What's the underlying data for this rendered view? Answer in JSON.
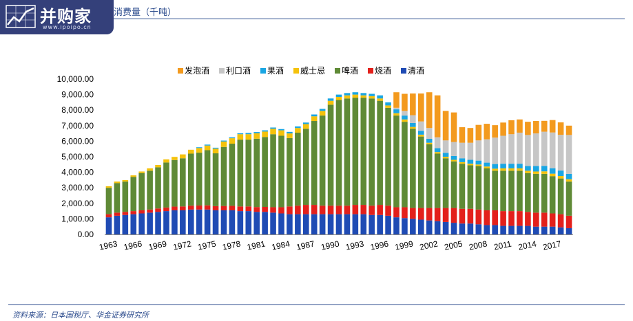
{
  "header": {
    "logo_text": "并购家",
    "logo_url": "www.ipoipo.cn",
    "title": "消费量（千吨）"
  },
  "footer": {
    "source": "资料来源：日本国税厅、华金证券研究所"
  },
  "colors": {
    "清酒": "#1f4bb4",
    "烧酒": "#e3201b",
    "啤酒": "#5f8a36",
    "威士忌": "#f5c20b",
    "果酒": "#1aa6e3",
    "利口酒": "#c6c6c6",
    "发泡酒": "#f39a1e",
    "brand": "#34407a",
    "text_blue": "#2a4a8c"
  },
  "chart_data": {
    "type": "bar",
    "stacked": true,
    "title": "",
    "xlabel": "",
    "ylabel": "",
    "ylim": [
      0,
      10000
    ],
    "yticks": [
      "0.00",
      "1,000.00",
      "2,000.00",
      "3,000.00",
      "4,000.00",
      "5,000.00",
      "6,000.00",
      "7,000.00",
      "8,000.00",
      "9,000.00",
      "10,000.00"
    ],
    "grid": false,
    "legend_position": "top",
    "legend_order": [
      "发泡酒",
      "利口酒",
      "果酒",
      "威士忌",
      "啤酒",
      "烧酒",
      "清酒"
    ],
    "categories": [
      "1963",
      "1964",
      "1965",
      "1966",
      "1967",
      "1968",
      "1969",
      "1970",
      "1971",
      "1972",
      "1973",
      "1974",
      "1975",
      "1976",
      "1977",
      "1978",
      "1979",
      "1980",
      "1981",
      "1982",
      "1983",
      "1984",
      "1985",
      "1986",
      "1987",
      "1988",
      "1989",
      "1990",
      "1991",
      "1992",
      "1993",
      "1994",
      "1995",
      "1996",
      "1997",
      "1998",
      "1999",
      "2000",
      "2001",
      "2002",
      "2003",
      "2004",
      "2005",
      "2006",
      "2007",
      "2008",
      "2009",
      "2010",
      "2011",
      "2012",
      "2013",
      "2014",
      "2015",
      "2016",
      "2017",
      "2018",
      "2019"
    ],
    "xtick_labels": [
      "1963",
      "1966",
      "1969",
      "1972",
      "1975",
      "1978",
      "1981",
      "1984",
      "1987",
      "1990",
      "1993",
      "1996",
      "1999",
      "2002",
      "2005",
      "2008",
      "2011",
      "2014",
      "2017"
    ],
    "series": [
      {
        "name": "清酒",
        "values": [
          1100,
          1200,
          1250,
          1300,
          1350,
          1400,
          1450,
          1500,
          1550,
          1550,
          1600,
          1600,
          1600,
          1550,
          1550,
          1550,
          1500,
          1500,
          1450,
          1450,
          1400,
          1350,
          1300,
          1300,
          1300,
          1300,
          1300,
          1300,
          1300,
          1300,
          1300,
          1300,
          1250,
          1250,
          1200,
          1100,
          1050,
          1000,
          950,
          900,
          850,
          800,
          750,
          700,
          700,
          650,
          600,
          600,
          550,
          550,
          550,
          550,
          500,
          500,
          500,
          450,
          400
        ]
      },
      {
        "name": "烧酒",
        "values": [
          200,
          200,
          200,
          200,
          200,
          200,
          220,
          230,
          240,
          250,
          250,
          260,
          270,
          270,
          280,
          290,
          300,
          300,
          310,
          320,
          350,
          400,
          500,
          550,
          600,
          600,
          550,
          550,
          550,
          550,
          600,
          600,
          600,
          650,
          650,
          650,
          700,
          700,
          750,
          800,
          850,
          900,
          950,
          950,
          950,
          950,
          950,
          950,
          950,
          950,
          950,
          900,
          900,
          900,
          850,
          850,
          800
        ]
      },
      {
        "name": "啤酒",
        "values": [
          1700,
          1900,
          1950,
          2200,
          2400,
          2500,
          2650,
          2900,
          3000,
          3100,
          3350,
          3400,
          3550,
          3400,
          3800,
          4000,
          4300,
          4300,
          4400,
          4500,
          4700,
          4600,
          4400,
          4700,
          4900,
          5400,
          5800,
          6500,
          6800,
          6900,
          6900,
          6900,
          6900,
          6700,
          6300,
          5900,
          5500,
          5100,
          4600,
          4100,
          3500,
          3200,
          3000,
          2900,
          2800,
          2800,
          2700,
          2550,
          2600,
          2600,
          2600,
          2500,
          2500,
          2500,
          2400,
          2300,
          2200
        ]
      },
      {
        "name": "威士忌",
        "values": [
          100,
          100,
          100,
          100,
          100,
          150,
          150,
          200,
          200,
          250,
          250,
          300,
          300,
          300,
          350,
          350,
          350,
          350,
          350,
          350,
          350,
          350,
          300,
          300,
          300,
          300,
          300,
          250,
          200,
          200,
          200,
          150,
          150,
          150,
          150,
          150,
          150,
          120,
          120,
          100,
          100,
          100,
          100,
          100,
          100,
          100,
          120,
          130,
          150,
          150,
          150,
          150,
          150,
          160,
          160,
          160,
          150
        ]
      },
      {
        "name": "果酒",
        "values": [
          0,
          0,
          0,
          0,
          0,
          0,
          0,
          0,
          0,
          0,
          0,
          50,
          60,
          60,
          60,
          60,
          60,
          80,
          80,
          80,
          80,
          80,
          100,
          100,
          100,
          120,
          130,
          150,
          150,
          150,
          150,
          150,
          150,
          200,
          200,
          250,
          250,
          250,
          250,
          250,
          250,
          250,
          250,
          250,
          250,
          250,
          250,
          300,
          300,
          300,
          300,
          300,
          350,
          350,
          350,
          350,
          350
        ]
      },
      {
        "name": "利口酒",
        "values": [
          0,
          0,
          0,
          0,
          0,
          0,
          0,
          0,
          0,
          0,
          0,
          0,
          0,
          0,
          0,
          0,
          0,
          0,
          0,
          0,
          0,
          0,
          0,
          0,
          0,
          0,
          0,
          0,
          0,
          0,
          0,
          0,
          0,
          0,
          0,
          100,
          300,
          500,
          600,
          700,
          700,
          800,
          900,
          1000,
          1100,
          1300,
          1500,
          1700,
          1800,
          1900,
          2000,
          2000,
          2100,
          2200,
          2300,
          2300,
          2500
        ]
      },
      {
        "name": "发泡酒",
        "values": [
          0,
          0,
          0,
          0,
          0,
          0,
          0,
          0,
          0,
          0,
          0,
          0,
          0,
          0,
          0,
          0,
          0,
          0,
          0,
          0,
          0,
          0,
          0,
          0,
          0,
          0,
          0,
          0,
          0,
          0,
          0,
          0,
          0,
          0,
          0,
          1000,
          1100,
          1400,
          1800,
          2300,
          2700,
          1900,
          1900,
          1000,
          950,
          1000,
          1000,
          800,
          850,
          900,
          850,
          850,
          800,
          700,
          800,
          800,
          600
        ]
      }
    ]
  }
}
